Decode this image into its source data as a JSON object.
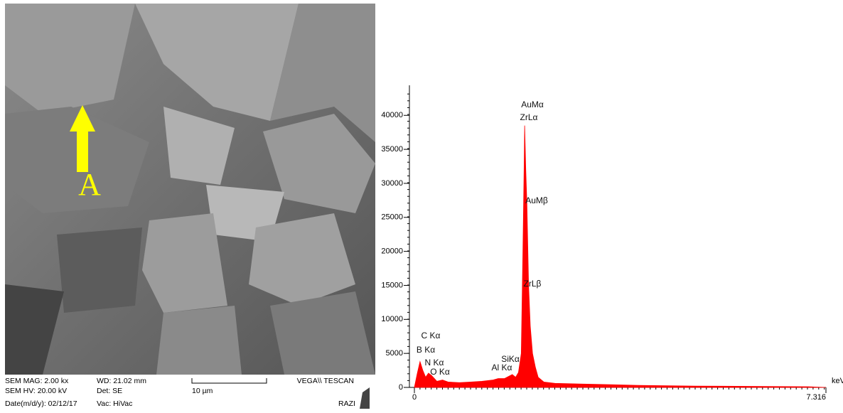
{
  "sem_image": {
    "marker_label": "A",
    "info": {
      "mag": "SEM MAG: 2.00 kx",
      "wd": "WD: 21.02 mm",
      "scale": "10 µm",
      "brand": "VEGA\\\\ TESCAN",
      "hv": "SEM HV: 20.00 kV",
      "det": "Det: SE",
      "date": "Date(m/d/y): 02/12/17",
      "vac": "Vac: HiVac",
      "lab": "RAZI"
    }
  },
  "chart_data": {
    "type": "area",
    "x_label": "keV",
    "x": [
      0,
      0.05,
      0.1,
      0.15,
      0.2,
      0.25,
      0.3,
      0.4,
      0.5,
      0.6,
      0.8,
      1.0,
      1.2,
      1.4,
      1.49,
      1.6,
      1.74,
      1.8,
      1.85,
      1.9,
      1.93,
      1.95,
      1.96,
      1.98,
      2.0,
      2.03,
      2.06,
      2.1,
      2.15,
      2.2,
      2.3,
      2.5,
      3.0,
      3.5,
      4.0,
      5.0,
      6.0,
      7.0,
      7.316
    ],
    "values": [
      0,
      2000,
      3800,
      2500,
      1500,
      2100,
      1800,
      900,
      1100,
      800,
      700,
      800,
      900,
      1100,
      1300,
      1300,
      1900,
      1500,
      2200,
      5000,
      20500,
      32000,
      38500,
      32000,
      27000,
      15000,
      9000,
      5000,
      3000,
      1500,
      800,
      600,
      500,
      400,
      300,
      200,
      150,
      100,
      0
    ],
    "color": "#ff0000",
    "xlim": [
      0,
      7.316
    ],
    "xticks": [
      0,
      7.316
    ],
    "ylim": [
      0,
      44000
    ],
    "yticks": [
      0,
      5000,
      10000,
      15000,
      20000,
      25000,
      30000,
      35000,
      40000
    ],
    "annotations": [
      "AuMα",
      "ZrLα",
      "AuMβ",
      "ZrLβ",
      "C Kα",
      "B Kα",
      "N Kα",
      "O Kα",
      "Al Kα",
      "SiKα"
    ]
  }
}
